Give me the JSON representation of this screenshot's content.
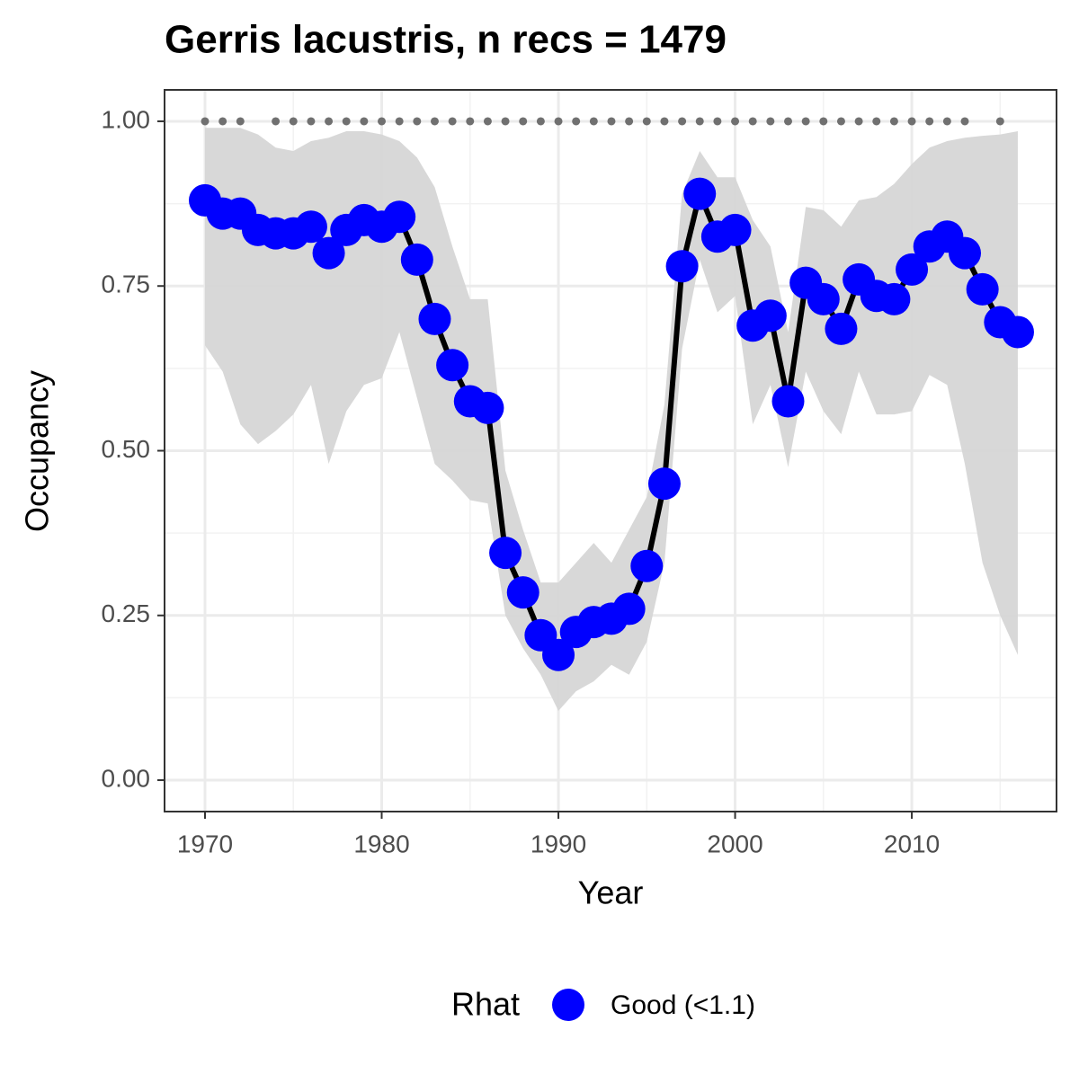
{
  "chart_data": {
    "type": "line",
    "title": "Gerris lacustris, n recs = 1479",
    "xlabel": "Year",
    "ylabel": "Occupancy",
    "x": [
      1970,
      1971,
      1972,
      1973,
      1974,
      1975,
      1976,
      1977,
      1978,
      1979,
      1980,
      1981,
      1982,
      1983,
      1984,
      1985,
      1986,
      1987,
      1988,
      1989,
      1990,
      1991,
      1992,
      1993,
      1994,
      1995,
      1996,
      1997,
      1998,
      1999,
      2000,
      2001,
      2002,
      2003,
      2004,
      2005,
      2006,
      2007,
      2008,
      2009,
      2010,
      2011,
      2012,
      2013,
      2014,
      2015,
      2016
    ],
    "series": [
      {
        "name": "Good (<1.1)",
        "color": "#0000ff",
        "line_color": "#000000",
        "band_color": "#d6d6d6",
        "values": [
          0.88,
          0.86,
          0.86,
          0.835,
          0.83,
          0.83,
          0.84,
          0.8,
          0.835,
          0.85,
          0.84,
          0.855,
          0.79,
          0.7,
          0.63,
          0.575,
          0.565,
          0.345,
          0.285,
          0.22,
          0.19,
          0.225,
          0.24,
          0.245,
          0.26,
          0.325,
          0.45,
          0.78,
          0.89,
          0.825,
          0.835,
          0.69,
          0.705,
          0.575,
          0.755,
          0.73,
          0.685,
          0.76,
          0.735,
          0.73,
          0.775,
          0.81,
          0.825,
          0.8,
          0.745,
          0.695,
          0.68
        ],
        "upper": [
          0.99,
          0.99,
          0.99,
          0.98,
          0.96,
          0.955,
          0.97,
          0.975,
          0.985,
          0.985,
          0.98,
          0.97,
          0.945,
          0.9,
          0.81,
          0.73,
          0.73,
          0.47,
          0.38,
          0.3,
          0.3,
          0.33,
          0.36,
          0.33,
          0.38,
          0.43,
          0.57,
          0.89,
          0.955,
          0.915,
          0.915,
          0.85,
          0.81,
          0.68,
          0.87,
          0.865,
          0.84,
          0.88,
          0.885,
          0.905,
          0.935,
          0.96,
          0.97,
          0.975,
          0.978,
          0.98,
          0.985
        ],
        "lower": [
          0.66,
          0.62,
          0.54,
          0.51,
          0.53,
          0.555,
          0.6,
          0.48,
          0.56,
          0.6,
          0.61,
          0.68,
          0.58,
          0.48,
          0.455,
          0.425,
          0.42,
          0.25,
          0.2,
          0.16,
          0.105,
          0.135,
          0.15,
          0.175,
          0.16,
          0.21,
          0.33,
          0.655,
          0.79,
          0.71,
          0.735,
          0.54,
          0.6,
          0.475,
          0.62,
          0.56,
          0.525,
          0.62,
          0.555,
          0.555,
          0.56,
          0.615,
          0.6,
          0.48,
          0.33,
          0.25,
          0.19
        ]
      }
    ],
    "record_markers": {
      "x": [
        1970,
        1971,
        1972,
        1974,
        1975,
        1976,
        1977,
        1978,
        1979,
        1980,
        1981,
        1982,
        1983,
        1984,
        1985,
        1986,
        1987,
        1988,
        1989,
        1990,
        1991,
        1992,
        1993,
        1994,
        1995,
        1996,
        1997,
        1998,
        1999,
        2000,
        2001,
        2002,
        2003,
        2004,
        2005,
        2006,
        2007,
        2008,
        2009,
        2010,
        2011,
        2012,
        2013,
        2015
      ],
      "y": 1,
      "color": "#707070"
    },
    "legend_title": "Rhat",
    "legend": "bottom",
    "xlim": [
      1967.71,
      2018.19
    ],
    "ylim": [
      -0.0477,
      1.0477
    ],
    "xticks": [
      1970,
      1980,
      1990,
      2000,
      2010
    ],
    "xminorticks": [
      1975,
      1985,
      1995,
      2005,
      2015
    ],
    "yticks": [
      {
        "value": 0,
        "label": "0.00"
      },
      {
        "value": 0.25,
        "label": "0.25"
      },
      {
        "value": 0.5,
        "label": "0.50"
      },
      {
        "value": 0.75,
        "label": "0.75"
      },
      {
        "value": 1,
        "label": "1.00"
      }
    ],
    "yminorticks": [
      0.125,
      0.375,
      0.625,
      0.875
    ],
    "grid": true
  }
}
